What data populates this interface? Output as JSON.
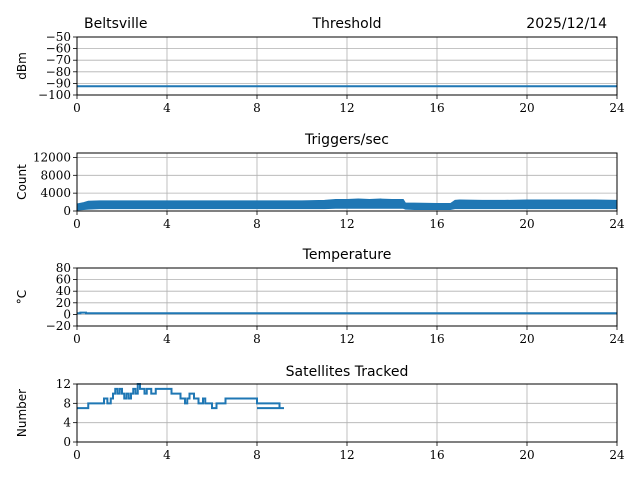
{
  "header": {
    "site": "Beltsville",
    "date": "2025/12/14"
  },
  "chart_data": [
    {
      "type": "line",
      "title": "Threshold",
      "xlabel": "",
      "ylabel": "dBm",
      "xlim": [
        0,
        24
      ],
      "ylim": [
        -100,
        -50
      ],
      "xticks": [
        0,
        4,
        8,
        12,
        16,
        20,
        24
      ],
      "yticks": [
        -100,
        -90,
        -80,
        -70,
        -60,
        -50
      ],
      "grid": true,
      "color": "#1f77b4",
      "series": [
        {
          "x": [
            0,
            24
          ],
          "y": [
            -92.5,
            -92.5
          ]
        }
      ]
    },
    {
      "type": "line",
      "title": "Triggers/sec",
      "xlabel": "",
      "ylabel": "Count",
      "xlim": [
        0,
        24
      ],
      "ylim": [
        0,
        13000
      ],
      "xticks": [
        0,
        4,
        8,
        12,
        16,
        20,
        24
      ],
      "yticks": [
        0,
        4000,
        8000,
        12000
      ],
      "grid": true,
      "color": "#1f77b4",
      "series": [
        {
          "x": [
            0,
            0.3,
            0.5,
            1,
            2,
            3,
            4,
            5,
            6,
            7,
            8,
            9,
            10,
            11,
            11.5,
            12,
            12.5,
            13,
            13.5,
            14,
            14.5,
            14.6,
            15,
            16,
            16.5,
            16.6,
            16.8,
            17,
            18,
            19,
            20,
            21,
            22,
            23,
            24
          ],
          "low": [
            200,
            300,
            400,
            500,
            500,
            500,
            500,
            500,
            500,
            500,
            500,
            500,
            500,
            500,
            600,
            600,
            600,
            600,
            600,
            600,
            600,
            400,
            300,
            300,
            300,
            300,
            500,
            500,
            500,
            500,
            500,
            500,
            500,
            500,
            500
          ],
          "high": [
            1600,
            1900,
            2200,
            2300,
            2300,
            2300,
            2300,
            2300,
            2300,
            2300,
            2300,
            2300,
            2300,
            2400,
            2600,
            2600,
            2700,
            2600,
            2700,
            2600,
            2600,
            1800,
            1800,
            1700,
            1700,
            1700,
            2400,
            2500,
            2400,
            2400,
            2500,
            2500,
            2500,
            2500,
            2400
          ]
        }
      ]
    },
    {
      "type": "line",
      "title": "Temperature",
      "xlabel": "",
      "ylabel": "°C",
      "xlim": [
        0,
        24
      ],
      "ylim": [
        -20,
        80
      ],
      "xticks": [
        0,
        4,
        8,
        12,
        16,
        20,
        24
      ],
      "yticks": [
        -20,
        0,
        20,
        40,
        60,
        80
      ],
      "grid": true,
      "color": "#1f77b4",
      "series": [
        {
          "x": [
            0,
            0.1,
            0.15,
            0.35,
            0.4,
            24
          ],
          "y": [
            2,
            2,
            3,
            3,
            2,
            2
          ]
        }
      ]
    },
    {
      "type": "line",
      "title": "Satellites Tracked",
      "xlabel": "",
      "ylabel": "Number",
      "xlim": [
        0,
        24
      ],
      "ylim": [
        0,
        12
      ],
      "xticks": [
        0,
        4,
        8,
        12,
        16,
        20,
        24
      ],
      "yticks": [
        0,
        4,
        8,
        12
      ],
      "grid": true,
      "color": "#1f77b4",
      "series": [
        {
          "x": [
            0,
            0.3,
            0.5,
            1.1,
            1.2,
            1.35,
            1.5,
            1.6,
            1.7,
            1.8,
            1.9,
            2.0,
            2.1,
            2.2,
            2.3,
            2.4,
            2.5,
            2.6,
            2.7,
            2.8,
            2.9,
            3.0,
            3.1,
            3.3,
            3.5,
            3.8,
            4.0,
            4.2,
            4.4,
            4.6,
            4.8,
            4.9,
            5.0,
            5.2,
            5.4,
            5.6,
            5.7,
            5.8,
            6.0,
            6.2,
            6.4,
            6.6,
            6.8,
            7.0,
            7.2,
            7.5,
            7.8,
            8.0,
            8.3,
            8.6,
            8.8,
            9.0,
            9.2,
            8.8,
            8.5,
            8.3,
            8.2,
            8.1,
            8.0,
            8.0
          ],
          "y": [
            7,
            7,
            8,
            8,
            9,
            8,
            9,
            10,
            11,
            10,
            11,
            10,
            9,
            10,
            9,
            10,
            11,
            10,
            12,
            11,
            11,
            10,
            11,
            10,
            11,
            11,
            11,
            10,
            10,
            9,
            8,
            9,
            10,
            9,
            8,
            9,
            8,
            8,
            7,
            8,
            8,
            9,
            9,
            9,
            9,
            9,
            9,
            8,
            8,
            8,
            8,
            7,
            7,
            7,
            7,
            7,
            7,
            7,
            7,
            7
          ]
        }
      ]
    }
  ]
}
